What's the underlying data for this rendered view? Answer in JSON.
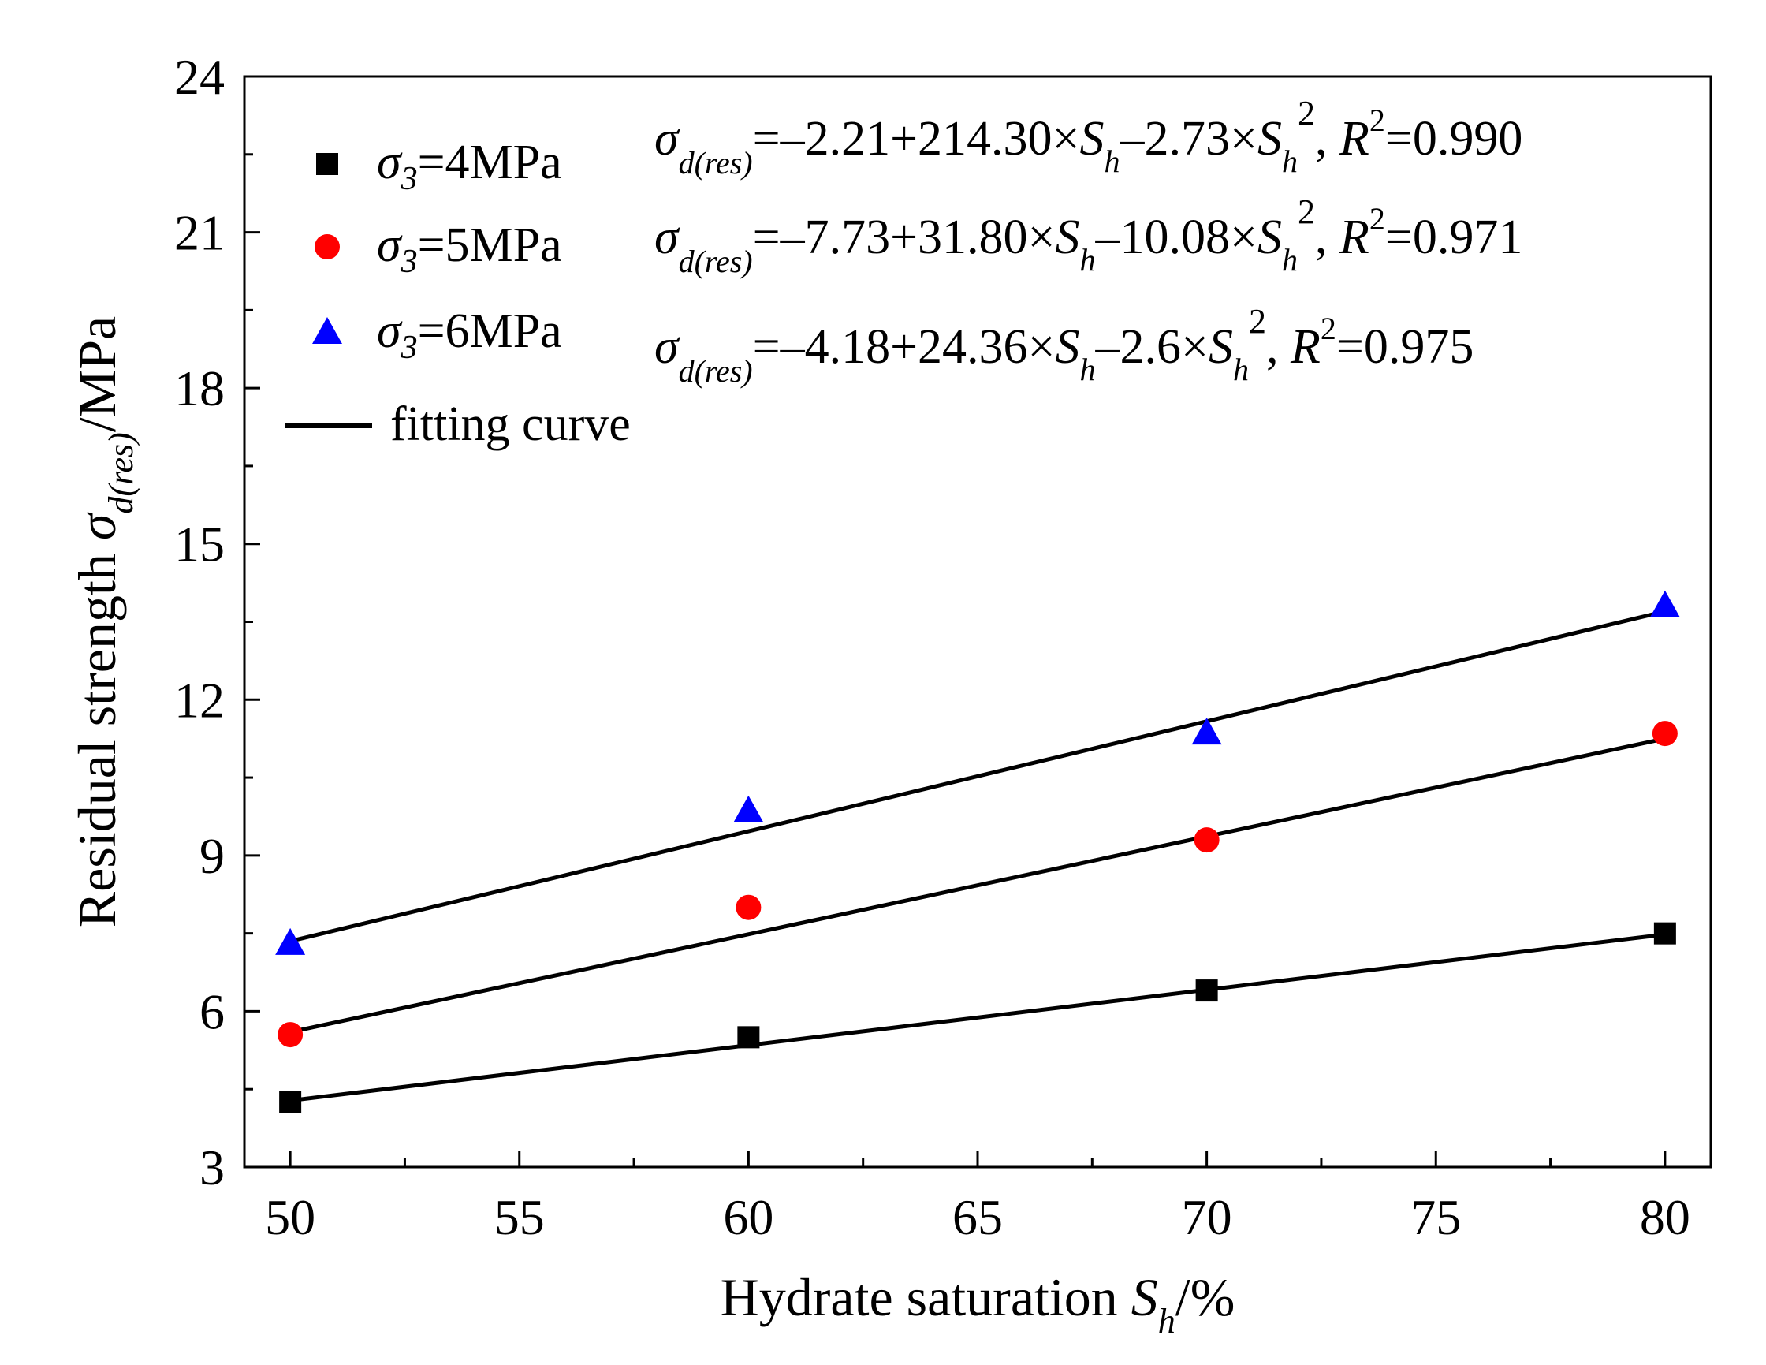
{
  "chart_data": {
    "type": "scatter",
    "xlabel": {
      "prefix": "Hydrate saturation ",
      "var": "S",
      "sub": "h",
      "suffix": "/%"
    },
    "ylabel": {
      "prefix": "Residual strength ",
      "var": "σ",
      "sub": "d(res)",
      "suffix": "/MPa"
    },
    "xlim": [
      49,
      81
    ],
    "ylim": [
      3,
      24
    ],
    "xticks": [
      50,
      55,
      60,
      65,
      70,
      75,
      80
    ],
    "yticks": [
      3,
      6,
      9,
      12,
      15,
      18,
      21,
      24
    ],
    "grid": false,
    "legend_position": "top-left",
    "series": [
      {
        "name": "σ3=4MPa",
        "marker": "square",
        "color": "#000000",
        "x": [
          50,
          60,
          70,
          80
        ],
        "y": [
          4.25,
          5.5,
          6.4,
          7.5
        ],
        "fit": {
          "x": [
            50,
            80
          ],
          "y": [
            4.28,
            7.48
          ]
        }
      },
      {
        "name": "σ3=5MPa",
        "marker": "circle",
        "color": "#ff0000",
        "x": [
          50,
          60,
          70,
          80
        ],
        "y": [
          5.55,
          8.0,
          9.3,
          11.35
        ],
        "fit": {
          "x": [
            50,
            80
          ],
          "y": [
            5.6,
            11.25
          ]
        }
      },
      {
        "name": "σ3=6MPa",
        "marker": "triangle",
        "color": "#0000ff",
        "x": [
          50,
          60,
          70,
          80
        ],
        "y": [
          7.3,
          9.85,
          11.35,
          13.8
        ],
        "fit": {
          "x": [
            50,
            80
          ],
          "y": [
            7.35,
            13.7
          ]
        }
      }
    ],
    "legend": [
      {
        "marker": "square",
        "color": "#000000",
        "sym": "σ",
        "sub": "3",
        "text": "=4MPa"
      },
      {
        "marker": "circle",
        "color": "#ff0000",
        "sym": "σ",
        "sub": "3",
        "text": "=5MPa"
      },
      {
        "marker": "triangle",
        "color": "#0000ff",
        "sym": "σ",
        "sub": "3",
        "text": "=6MPa"
      },
      {
        "marker": "line",
        "color": "#000000",
        "text": "fitting curve"
      }
    ],
    "equations": [
      {
        "a": "=–2.21+214.30×",
        "b": "–2.73×",
        "r2": "=0.990"
      },
      {
        "a": "=–7.73+31.80×",
        "b": "–10.08×",
        "r2": "=0.971"
      },
      {
        "a": "=–4.18+24.36×",
        "b": "–2.6×",
        "r2": "=0.975"
      }
    ]
  }
}
